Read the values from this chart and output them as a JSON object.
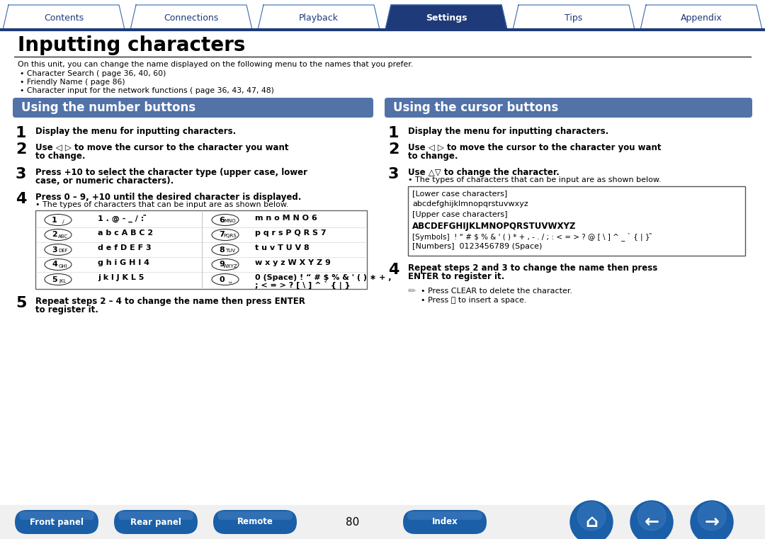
{
  "title": "Inputting characters",
  "tab_labels": [
    "Contents",
    "Connections",
    "Playback",
    "Settings",
    "Tips",
    "Appendix"
  ],
  "active_tab": "Settings",
  "tab_color_active": "#1e3a78",
  "tab_color_inactive": "#ffffff",
  "tab_text_color_active": "#ffffff",
  "tab_text_color_inactive": "#1e3a78",
  "tab_border_color": "#3a6ab0",
  "header_line_color": "#1e3a78",
  "section_bg_color": "#5272a8",
  "body_text_color": "#111111",
  "intro_text": "On this unit, you can change the name displayed on the following menu to the names that you prefer.",
  "bullets": [
    "• Character Search ( page 36, 40, 60)",
    "• Friendly Name ( page 86)",
    "• Character input for the network functions ( page 36, 43, 47, 48)"
  ],
  "left_section_title": "Using the number buttons",
  "right_section_title": "Using the cursor buttons",
  "bottom_btn_color": "#1a5fa8",
  "bottom_page": "80",
  "bottom_buttons_left": [
    "Front panel",
    "Rear panel",
    "Remote"
  ],
  "bottom_buttons_right": [
    "Index"
  ]
}
